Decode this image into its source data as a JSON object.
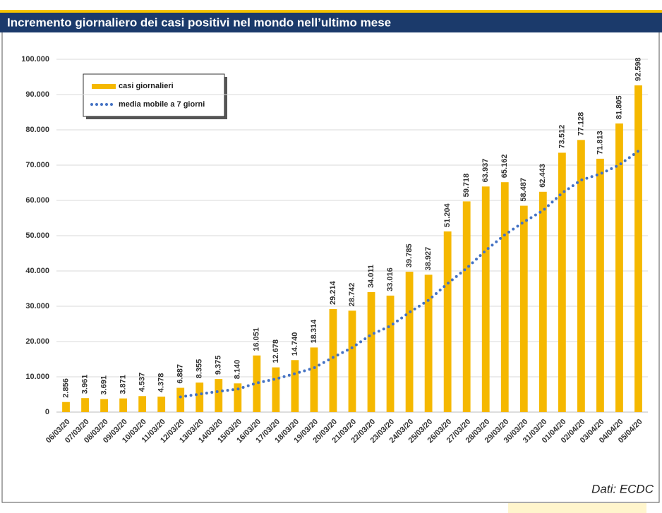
{
  "chart_data": {
    "type": "bar",
    "title": "Incremento giornaliero dei casi positivi nel mondo nell’ultimo mese",
    "source": "Dati: ECDC",
    "categories": [
      "06/03/20",
      "07/03/20",
      "08/03/20",
      "09/03/20",
      "10/03/20",
      "11/03/20",
      "12/03/20",
      "13/03/20",
      "14/03/20",
      "15/03/20",
      "16/03/20",
      "17/03/20",
      "18/03/20",
      "19/03/20",
      "20/03/20",
      "21/03/20",
      "22/03/20",
      "23/03/20",
      "24/03/20",
      "25/03/20",
      "26/03/20",
      "27/03/20",
      "28/03/20",
      "29/03/20",
      "30/03/20",
      "31/03/20",
      "01/04/20",
      "02/04/20",
      "03/04/20",
      "04/04/20",
      "05/04/20"
    ],
    "series": [
      {
        "name": "casi giornalieri",
        "type": "bar",
        "color": "#f5b800",
        "values": [
          2856,
          3961,
          3691,
          3871,
          4537,
          4378,
          6887,
          8355,
          9375,
          8140,
          16051,
          12678,
          14740,
          18314,
          29214,
          28742,
          34011,
          33016,
          39785,
          38927,
          51204,
          59718,
          63937,
          65162,
          58487,
          62443,
          73512,
          77128,
          71813,
          81805,
          92598
        ],
        "value_labels": [
          "2.856",
          "3.961",
          "3.691",
          "3.871",
          "4.537",
          "4.378",
          "6.887",
          "8.355",
          "9.375",
          "8.140",
          "16.051",
          "12.678",
          "14.740",
          "18.314",
          "29.214",
          "28.742",
          "34.011",
          "33.016",
          "39.785",
          "38.927",
          "51.204",
          "59.718",
          "63.937",
          "65.162",
          "58.487",
          "62.443",
          "73.512",
          "77.128",
          "71.813",
          "81.805",
          "92.598"
        ]
      },
      {
        "name": "media mobile a 7 giorni",
        "type": "line",
        "color": "#4472c4",
        "values": [
          null,
          null,
          null,
          null,
          null,
          null,
          4312,
          5097,
          5871,
          6506,
          8246,
          9409,
          10889,
          12522,
          15502,
          18268,
          21964,
          24388,
          28260,
          31716,
          36414,
          40772,
          45800,
          50250,
          53889,
          57125,
          62066,
          65770,
          67497,
          70050,
          73969
        ]
      }
    ],
    "ylim": [
      0,
      100000
    ],
    "yticks": [
      0,
      {
        "value": 10000,
        "label": "10.000"
      },
      {
        "value": 20000,
        "label": "20.000"
      },
      {
        "value": 30000,
        "label": "30.000"
      },
      {
        "value": 40000,
        "label": "40.000"
      },
      {
        "value": 50000,
        "label": "50.000"
      },
      {
        "value": 60000,
        "label": "60.000"
      },
      {
        "value": 70000,
        "label": "70.000"
      },
      {
        "value": 80000,
        "label": "80.000"
      },
      {
        "value": 90000,
        "label": "90.000"
      },
      {
        "value": 100000,
        "label": "100.000"
      }
    ],
    "grid": true
  }
}
